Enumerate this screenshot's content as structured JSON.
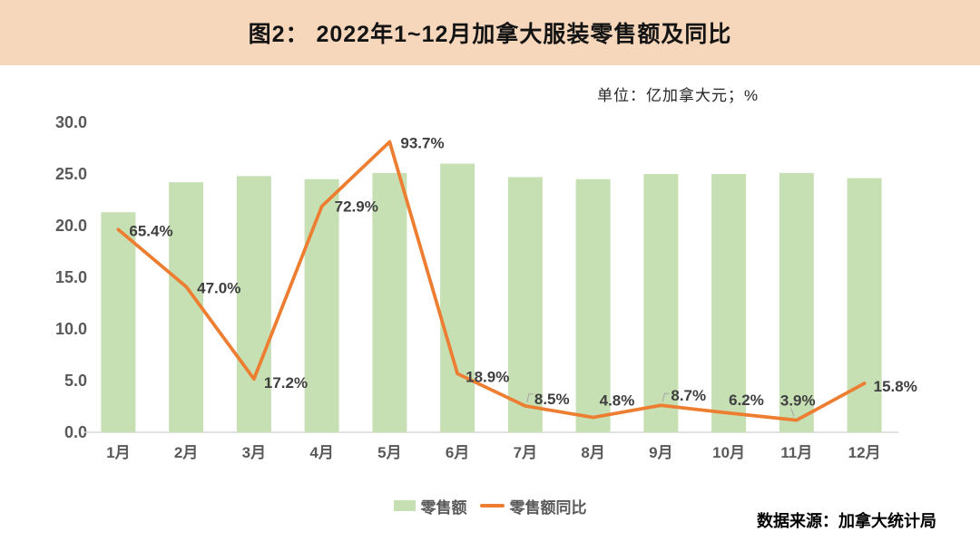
{
  "title": "图2： 2022年1~12月加拿大服装零售额及同比",
  "unit_label": "单位：亿加拿大元；%",
  "source_label": "数据来源：加拿大统计局",
  "legend": {
    "bar": "零售额",
    "line": "零售额同比"
  },
  "colors": {
    "title_bg": "#F6D7BB",
    "bar": "#C6E0B4",
    "line": "#ED7D31",
    "axis_text": "#595959",
    "data_label": "#3F3F3F",
    "baseline": "#D9D9D9",
    "leader": "#A6A6A6"
  },
  "chart_data": {
    "type": "bar",
    "title": "图2： 2022年1~12月加拿大服装零售额及同比",
    "categories": [
      "1月",
      "2月",
      "3月",
      "4月",
      "5月",
      "6月",
      "7月",
      "8月",
      "9月",
      "10月",
      "11月",
      "12月"
    ],
    "series": [
      {
        "name": "零售额",
        "type": "bar",
        "axis": "primary",
        "values": [
          21.3,
          24.2,
          24.8,
          24.5,
          25.1,
          26.0,
          24.7,
          24.5,
          25.0,
          25.0,
          25.1,
          24.6
        ]
      },
      {
        "name": "零售额同比",
        "type": "line",
        "axis": "secondary",
        "values": [
          65.4,
          47.0,
          17.2,
          72.9,
          93.7,
          18.9,
          8.5,
          4.8,
          8.7,
          6.2,
          3.9,
          15.8
        ],
        "labels": [
          "65.4%",
          "47.0%",
          "17.2%",
          "72.9%",
          "93.7%",
          "18.9%",
          "8.5%",
          "4.8%",
          "8.7%",
          "6.2%",
          "3.9%",
          "15.8%"
        ]
      }
    ],
    "primary_axis": {
      "min": 0,
      "max": 30,
      "ticks": [
        "30.0",
        "25.0",
        "20.0",
        "15.0",
        "10.0",
        "5.0",
        "0.0"
      ]
    },
    "secondary_axis": {
      "min": 0,
      "max": 100,
      "visible": false
    },
    "grid": false,
    "legend_position": "bottom"
  }
}
